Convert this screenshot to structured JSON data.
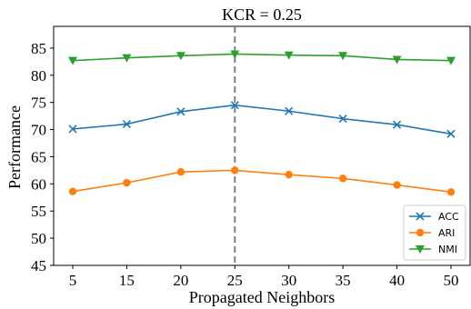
{
  "chart_data": {
    "type": "line",
    "title": "KCR = 0.25",
    "xlabel": "Propagated Neighbors",
    "ylabel": "Performance",
    "x": [
      5,
      15,
      20,
      25,
      30,
      35,
      40,
      50
    ],
    "x_tick_labels": [
      "5",
      "15",
      "20",
      "25",
      "30",
      "35",
      "40",
      "50"
    ],
    "ylim": [
      45,
      89
    ],
    "y_ticks": [
      45,
      50,
      55,
      60,
      65,
      70,
      75,
      80,
      85
    ],
    "grid": false,
    "legend_position": "lower-right",
    "vline": {
      "x": 25,
      "style": "dashed",
      "color": "#808080"
    },
    "series": [
      {
        "name": "ACC",
        "color": "#1f77b4",
        "marker": "x",
        "values": [
          70.1,
          71.0,
          73.3,
          74.5,
          73.4,
          72.0,
          70.9,
          69.2
        ]
      },
      {
        "name": "ARI",
        "color": "#ff7f0e",
        "marker": "circle",
        "values": [
          58.6,
          60.2,
          62.2,
          62.5,
          61.7,
          61.0,
          59.8,
          58.5
        ]
      },
      {
        "name": "NMI",
        "color": "#2ca02c",
        "marker": "triangle-down",
        "values": [
          82.7,
          83.2,
          83.6,
          83.9,
          83.7,
          83.6,
          82.9,
          82.7
        ]
      }
    ]
  }
}
